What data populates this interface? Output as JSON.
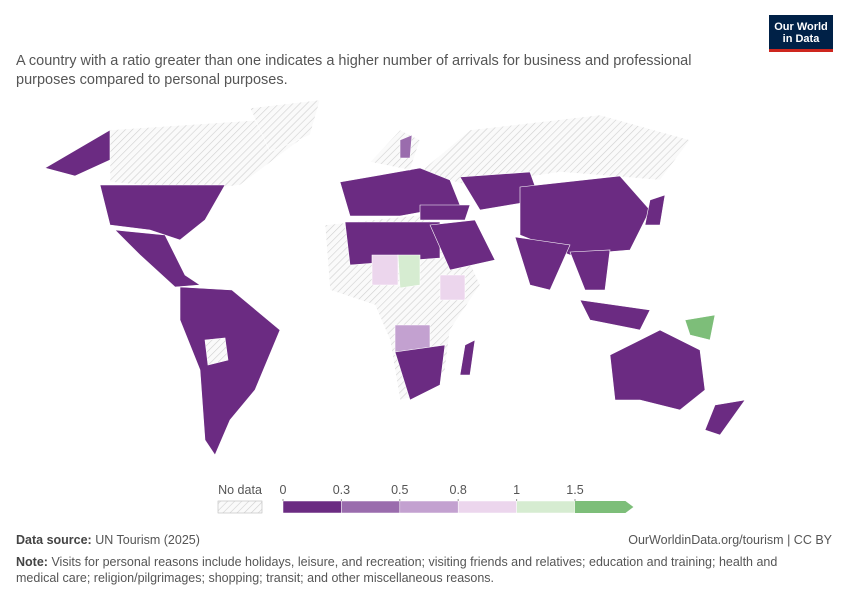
{
  "header": {
    "subtitle": "A country with a ratio greater than one indicates a higher number of arrivals for business and professional purposes compared to personal purposes.",
    "logo_line1": "Our World",
    "logo_line2": "in Data"
  },
  "legend": {
    "no_data": "No data",
    "ticks": [
      0,
      0.3,
      0.5,
      0.8,
      1,
      1.5
    ],
    "colors": [
      "#6b2b82",
      "#9a6cad",
      "#c3a1d0",
      "#ecd6ed",
      "#d6ecd1",
      "#7dbe79"
    ]
  },
  "footer": {
    "source_label": "Data source:",
    "source": "UN Tourism (2025)",
    "link": "OurWorldinData.org/tourism | CC BY",
    "note_label": "Note:",
    "note": "Visits for personal reasons include holidays, leisure, and recreation; visiting friends and relatives; education and training; health and medical care; religion/pilgrimages; shopping; transit; and other miscellaneous reasons."
  }
}
